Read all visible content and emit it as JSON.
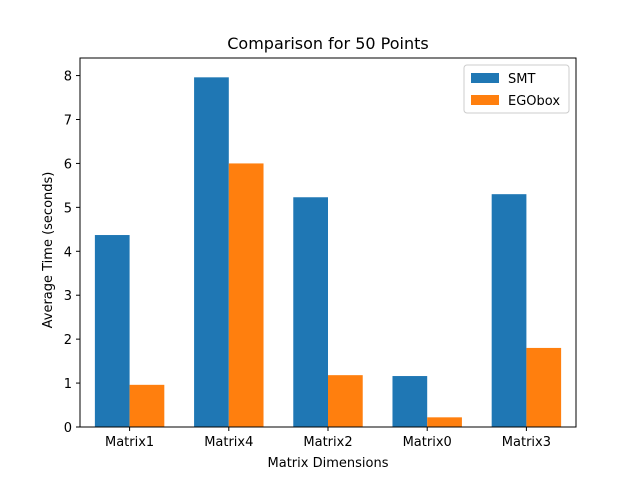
{
  "chart_data": {
    "type": "bar",
    "title": "Comparison for 50 Points",
    "xlabel": "Matrix Dimensions",
    "ylabel": "Average Time (seconds)",
    "categories": [
      "Matrix1",
      "Matrix4",
      "Matrix2",
      "Matrix0",
      "Matrix3"
    ],
    "series": [
      {
        "name": "SMT",
        "color": "#1f77b4",
        "values": [
          4.37,
          7.96,
          5.23,
          1.16,
          5.3
        ]
      },
      {
        "name": "EGObox",
        "color": "#ff7f0e",
        "values": [
          0.96,
          6.0,
          1.18,
          0.22,
          1.8
        ]
      }
    ],
    "ylim": [
      0,
      8.4
    ],
    "yticks": [
      0,
      1,
      2,
      3,
      4,
      5,
      6,
      7,
      8
    ],
    "grid": false,
    "legend_position": "top-right"
  }
}
